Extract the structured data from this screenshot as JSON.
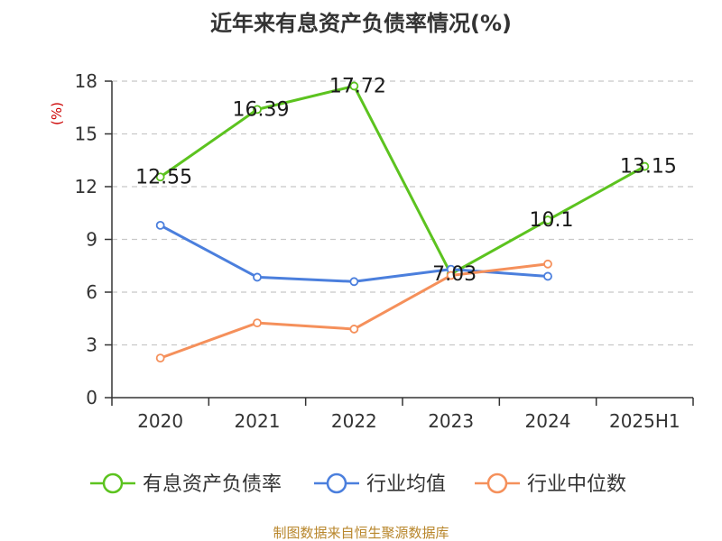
{
  "chart_data": {
    "type": "line",
    "title": "近年来有息资产负债率情况(%)",
    "ylabel": "(%)",
    "categories": [
      "2020",
      "2021",
      "2022",
      "2023",
      "2024",
      "2025H1"
    ],
    "ylim": [
      0,
      18
    ],
    "yticks": [
      0,
      3,
      6,
      9,
      12,
      15,
      18
    ],
    "grid": true,
    "legend_position": "bottom",
    "series": [
      {
        "name": "有息资产负债率",
        "color": "#5cc31f",
        "values": [
          12.55,
          16.39,
          17.72,
          7.03,
          10.1,
          13.15
        ],
        "labels": [
          "12.55",
          "16.39",
          "17.72",
          "7.03",
          "10.1",
          "13.15"
        ]
      },
      {
        "name": "行业均值",
        "color": "#4b7fdd",
        "values": [
          9.8,
          6.85,
          6.6,
          7.3,
          6.9,
          null
        ]
      },
      {
        "name": "行业中位数",
        "color": "#f5905b",
        "values": [
          2.25,
          4.25,
          3.9,
          6.95,
          7.6,
          null
        ]
      }
    ]
  },
  "source": "制图数据来自恒生聚源数据库"
}
